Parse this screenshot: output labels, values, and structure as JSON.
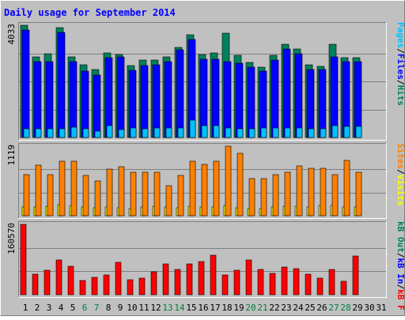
{
  "chart_data": [
    {
      "type": "bar",
      "title": "Daily usage for September 2014",
      "panel": "hits-files-pages",
      "ymax": 4033,
      "ymax_label": "4033",
      "grid": true,
      "categories": [
        "1",
        "2",
        "3",
        "4",
        "5",
        "6",
        "7",
        "8",
        "9",
        "10",
        "11",
        "12",
        "13",
        "14",
        "15",
        "16",
        "17",
        "18",
        "19",
        "20",
        "21",
        "22",
        "23",
        "24",
        "25",
        "26",
        "27",
        "28",
        "29",
        "30",
        "31"
      ],
      "series": [
        {
          "name": "Hits",
          "color": "#00805c",
          "values": [
            4033,
            2900,
            3000,
            3950,
            2900,
            2600,
            2430,
            3030,
            2990,
            2590,
            2780,
            2780,
            2900,
            3240,
            3680,
            2990,
            3030,
            3760,
            2940,
            2700,
            2520,
            2960,
            3360,
            3190,
            2600,
            2560,
            3340,
            2880,
            2880,
            null,
            null
          ]
        },
        {
          "name": "Files",
          "color": "#0000ff",
          "values": [
            3860,
            2730,
            2730,
            3780,
            2730,
            2390,
            2250,
            2860,
            2900,
            2420,
            2590,
            2600,
            2740,
            3140,
            3530,
            2820,
            2820,
            2720,
            2660,
            2520,
            2390,
            2780,
            3190,
            3010,
            2430,
            2430,
            2900,
            2730,
            2730,
            null,
            null
          ]
        },
        {
          "name": "Pages",
          "color": "#00c0ff",
          "values": [
            300,
            300,
            300,
            300,
            380,
            310,
            220,
            420,
            270,
            330,
            320,
            340,
            330,
            340,
            620,
            420,
            420,
            340,
            300,
            300,
            340,
            340,
            340,
            350,
            300,
            300,
            440,
            390,
            390,
            null,
            null
          ]
        }
      ],
      "legend": [
        {
          "text": "Hits",
          "color": "#00805c"
        },
        {
          "text": "Files",
          "color": "#0000ff"
        },
        {
          "text": "Pages",
          "color": "#00c0ff"
        }
      ],
      "separator_color": "#000000"
    },
    {
      "type": "bar",
      "panel": "visits-sites",
      "ymax": 1119,
      "ymax_label": "1119",
      "grid": true,
      "categories": [
        "1",
        "2",
        "3",
        "4",
        "5",
        "6",
        "7",
        "8",
        "9",
        "10",
        "11",
        "12",
        "13",
        "14",
        "15",
        "16",
        "17",
        "18",
        "19",
        "20",
        "21",
        "22",
        "23",
        "24",
        "25",
        "26",
        "27",
        "28",
        "29",
        "30",
        "31"
      ],
      "series": [
        {
          "name": "Visits",
          "color": "#ffff00",
          "values": [
            145,
            145,
            150,
            180,
            170,
            135,
            130,
            135,
            130,
            115,
            145,
            155,
            145,
            125,
            150,
            140,
            145,
            160,
            130,
            115,
            120,
            135,
            150,
            150,
            145,
            160,
            170,
            135,
            140,
            null,
            null
          ]
        },
        {
          "name": "Sites",
          "color": "#ff8000",
          "values": [
            665,
            810,
            655,
            880,
            880,
            650,
            565,
            750,
            785,
            700,
            700,
            700,
            485,
            645,
            880,
            830,
            880,
            1119,
            1000,
            600,
            600,
            665,
            700,
            805,
            765,
            765,
            665,
            885,
            700,
            null,
            null
          ]
        }
      ],
      "legend": [
        {
          "text": "Visits",
          "color": "#ffff00"
        },
        {
          "text": "Sites",
          "color": "#ff8000"
        }
      ],
      "separator_color": "#000000"
    },
    {
      "type": "bar",
      "panel": "kbytes",
      "ymax": 160570,
      "ymax_label": "160570",
      "grid": true,
      "categories": [
        "1",
        "2",
        "3",
        "4",
        "5",
        "6",
        "7",
        "8",
        "9",
        "10",
        "11",
        "12",
        "13",
        "14",
        "15",
        "16",
        "17",
        "18",
        "19",
        "20",
        "21",
        "22",
        "23",
        "24",
        "25",
        "26",
        "27",
        "28",
        "29",
        "30",
        "31"
      ],
      "series": [
        {
          "name": "kB F",
          "color": "#ff0000",
          "values": [
            160570,
            47000,
            56000,
            80000,
            65000,
            33000,
            39000,
            46000,
            74000,
            34000,
            38000,
            52000,
            70000,
            57000,
            71000,
            75000,
            90000,
            46000,
            56000,
            80000,
            58000,
            49000,
            64000,
            60000,
            47000,
            37000,
            57000,
            30000,
            89000,
            null,
            null
          ]
        }
      ],
      "legend": [
        {
          "text": "kB F",
          "color": "#ff0000"
        },
        {
          "text": "kB In",
          "color": "#0000ff"
        },
        {
          "text": "kB Out",
          "color": "#00805c"
        }
      ],
      "separator_color": "#000000"
    }
  ],
  "weekend_days": [
    "6",
    "7",
    "13",
    "14",
    "20",
    "21",
    "27",
    "28"
  ],
  "colors": {
    "background": "#c0c0c0",
    "frame_light": "#ffffff",
    "frame_dark": "#808080",
    "title": "#0000ff",
    "weekend_label": "#008040",
    "weekday_label": "#000000",
    "grid": "#808080"
  }
}
